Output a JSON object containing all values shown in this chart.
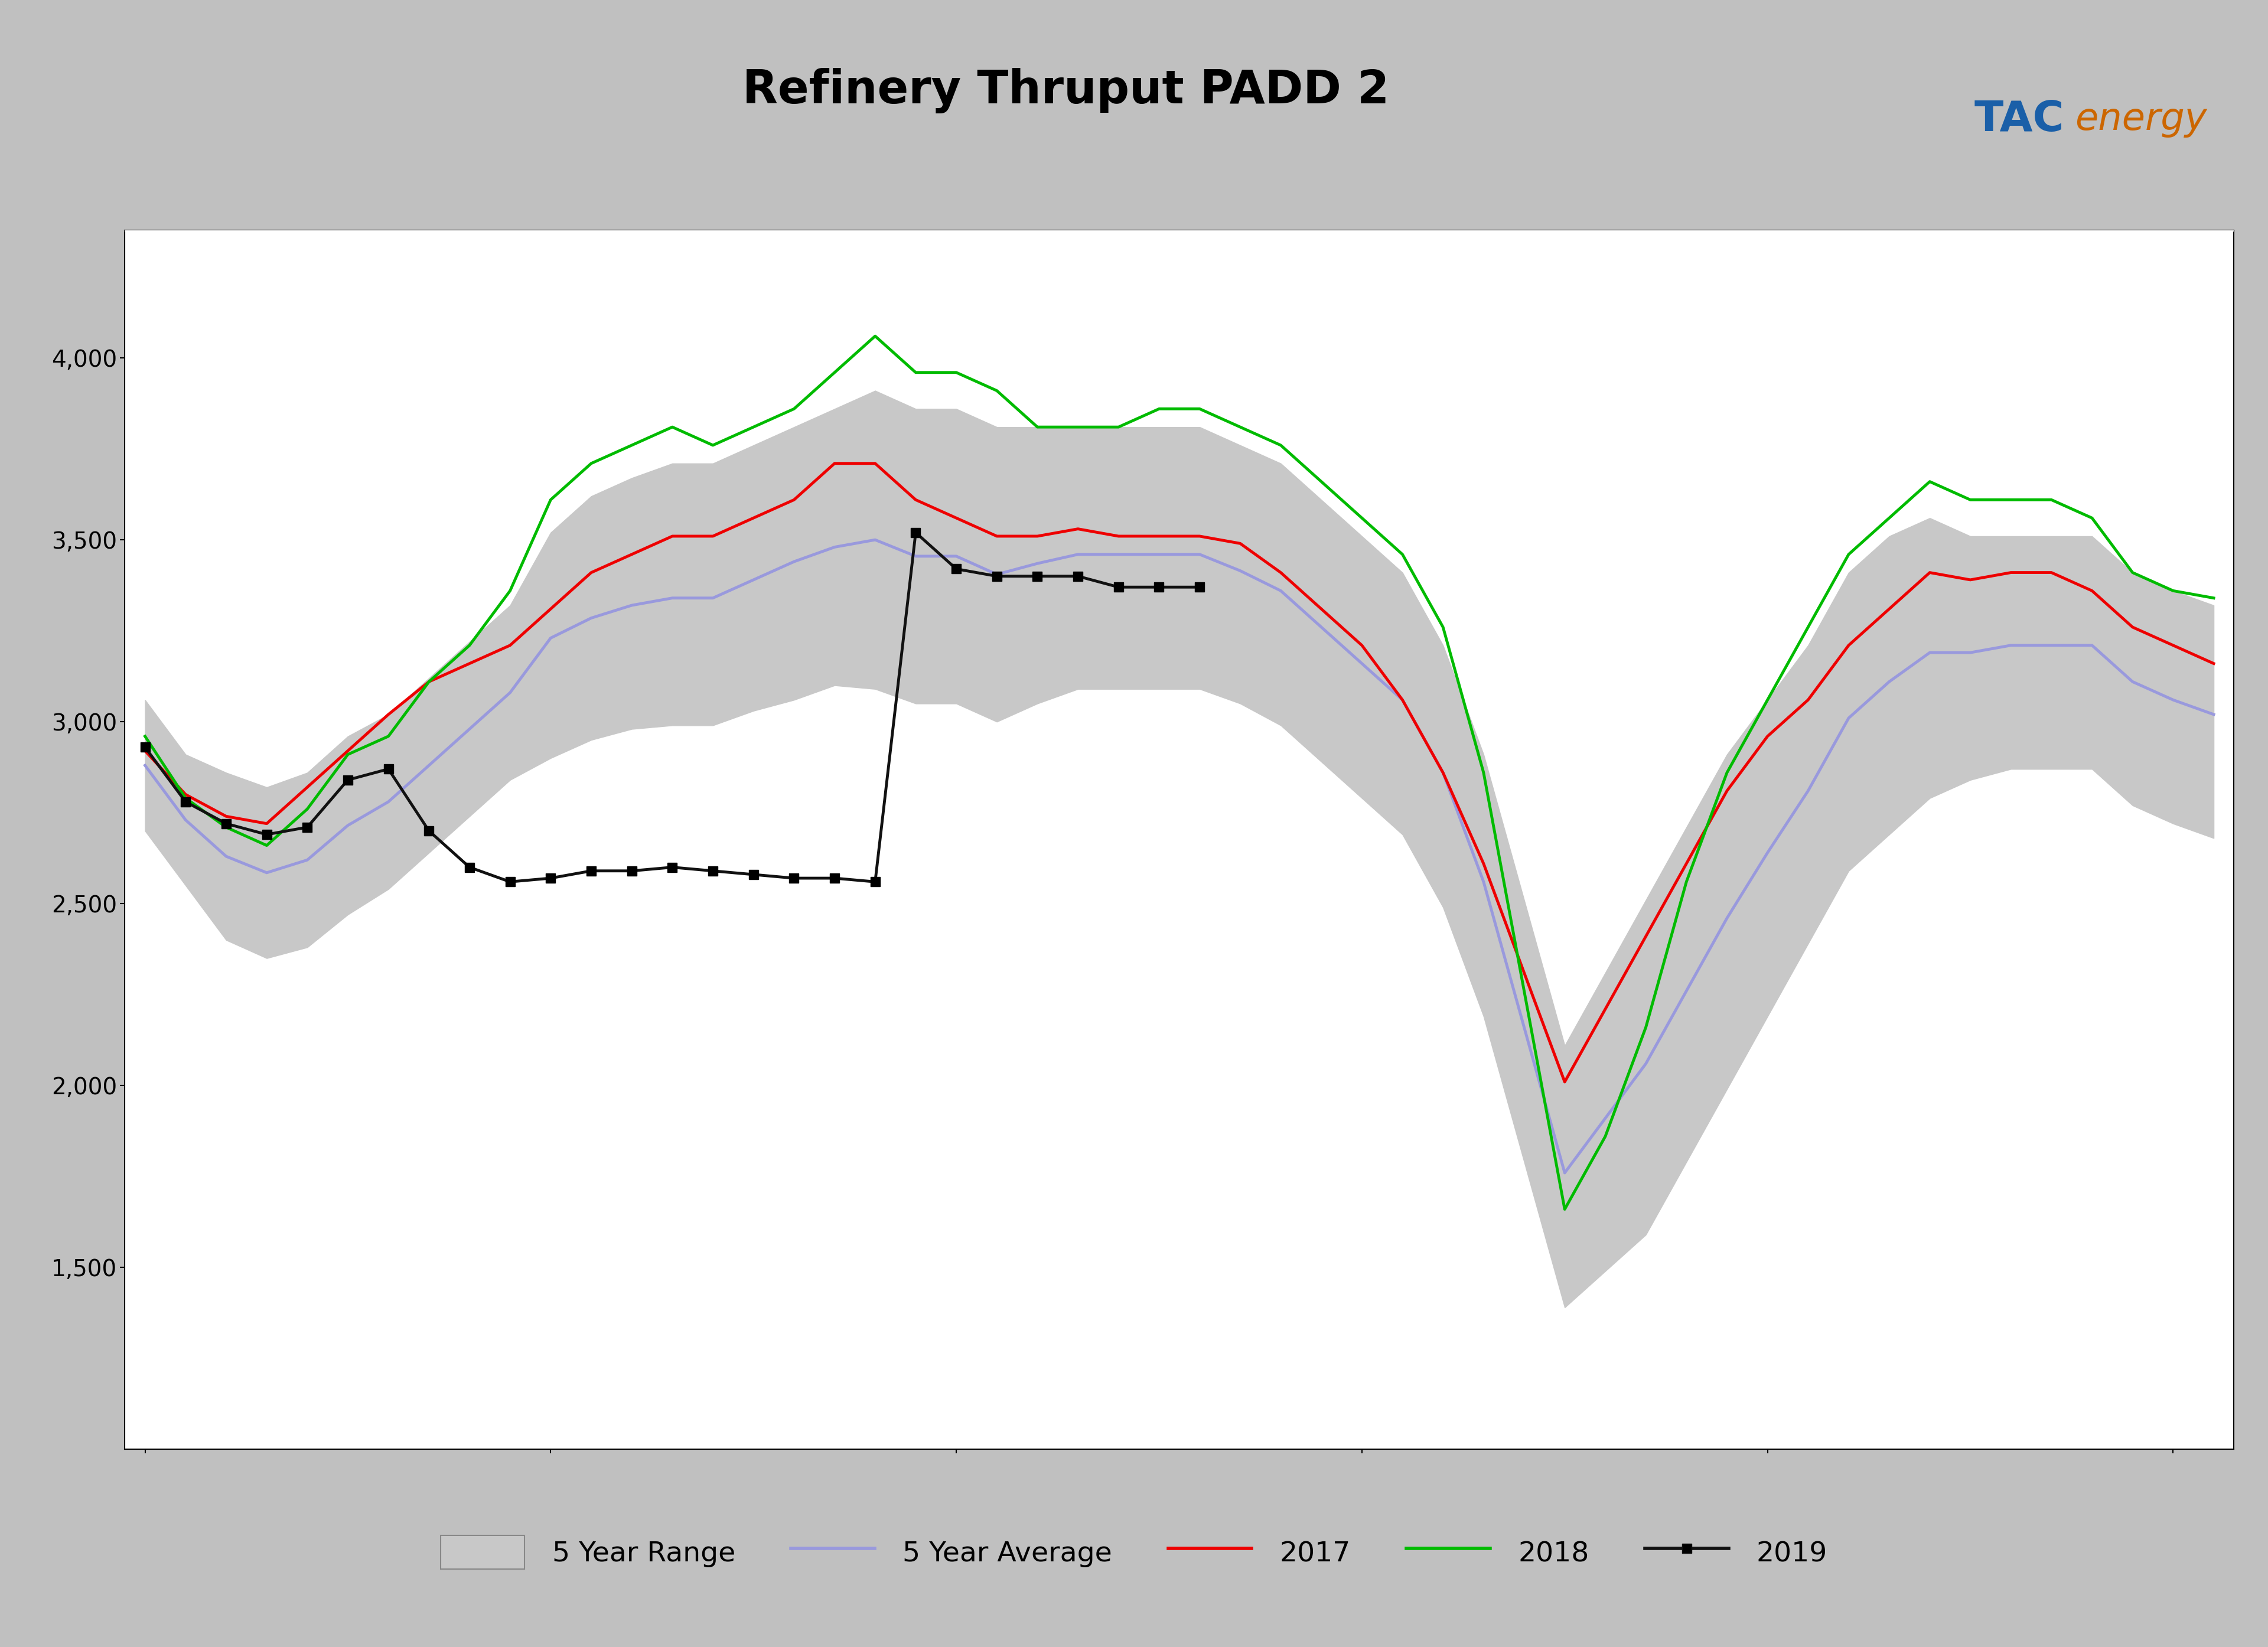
{
  "title": "Refinery Thruput PADD 2",
  "header_bg": "#c0c0c0",
  "blue_bar": "#1a5fa8",
  "plot_bg": "#ffffff",
  "outer_bg": "#000000",
  "grid_color": "#ffffff",
  "ytick_color": "#000000",
  "range_fill": "#c8c8c8",
  "range_fill_alpha": 1.0,
  "avg_color": "#9999dd",
  "color_2017": "#ee0000",
  "color_2018": "#00bb00",
  "color_2019": "#111111",
  "linewidth": 3.5,
  "n_weeks": 52,
  "ylim": [
    1000,
    4350
  ],
  "yticks": [
    1500,
    2000,
    2500,
    3000,
    3500,
    4000
  ],
  "yticklabels": [
    "1,500",
    "2,000",
    "2,500",
    "3,000",
    "3,500",
    "4,000"
  ],
  "range_low": [
    2700,
    2550,
    2400,
    2350,
    2380,
    2470,
    2540,
    2640,
    2740,
    2840,
    2900,
    2950,
    2980,
    2990,
    2990,
    3030,
    3060,
    3100,
    3090,
    3050,
    3050,
    3000,
    3050,
    3090,
    3090,
    3090,
    3090,
    3050,
    2990,
    2890,
    2790,
    2690,
    2490,
    2190,
    1790,
    1390,
    1490,
    1590,
    1790,
    1990,
    2190,
    2390,
    2590,
    2690,
    2790,
    2840,
    2870,
    2870,
    2870,
    2770,
    2720,
    2680
  ],
  "range_high": [
    3060,
    2910,
    2860,
    2820,
    2860,
    2960,
    3020,
    3120,
    3220,
    3320,
    3520,
    3620,
    3670,
    3710,
    3710,
    3760,
    3810,
    3860,
    3910,
    3860,
    3860,
    3810,
    3810,
    3810,
    3810,
    3810,
    3810,
    3760,
    3710,
    3610,
    3510,
    3410,
    3210,
    2910,
    2510,
    2110,
    2310,
    2510,
    2710,
    2910,
    3060,
    3210,
    3410,
    3510,
    3560,
    3510,
    3510,
    3510,
    3510,
    3410,
    3360,
    3320
  ],
  "avg_5yr": [
    2880,
    2730,
    2630,
    2585,
    2620,
    2715,
    2780,
    2880,
    2980,
    3080,
    3230,
    3285,
    3320,
    3340,
    3340,
    3390,
    3440,
    3480,
    3500,
    3455,
    3455,
    3405,
    3435,
    3460,
    3460,
    3460,
    3460,
    3415,
    3360,
    3260,
    3160,
    3060,
    2860,
    2560,
    2160,
    1760,
    1910,
    2060,
    2260,
    2460,
    2640,
    2810,
    3010,
    3110,
    3190,
    3190,
    3210,
    3210,
    3210,
    3110,
    3060,
    3020
  ],
  "y2017": [
    2920,
    2800,
    2740,
    2720,
    2820,
    2920,
    3020,
    3110,
    3160,
    3210,
    3310,
    3410,
    3460,
    3510,
    3510,
    3560,
    3610,
    3710,
    3710,
    3610,
    3560,
    3510,
    3510,
    3530,
    3510,
    3510,
    3510,
    3490,
    3410,
    3310,
    3210,
    3060,
    2860,
    2610,
    2310,
    2010,
    2210,
    2410,
    2610,
    2810,
    2960,
    3060,
    3210,
    3310,
    3410,
    3390,
    3410,
    3410,
    3360,
    3260,
    3210,
    3160
  ],
  "y2018": [
    2960,
    2790,
    2710,
    2660,
    2760,
    2910,
    2960,
    3110,
    3210,
    3360,
    3610,
    3710,
    3760,
    3810,
    3760,
    3810,
    3860,
    3960,
    4060,
    3960,
    3960,
    3910,
    3810,
    3810,
    3810,
    3860,
    3860,
    3810,
    3760,
    3660,
    3560,
    3460,
    3260,
    2860,
    2260,
    1660,
    1860,
    2160,
    2560,
    2860,
    3060,
    3260,
    3460,
    3560,
    3660,
    3610,
    3610,
    3610,
    3560,
    3410,
    3360,
    3340
  ],
  "y2019": [
    2930,
    2780,
    2720,
    2690,
    2710,
    2840,
    2870,
    2700,
    2600,
    2560,
    2570,
    2590,
    2590,
    2600,
    2590,
    2580,
    2570,
    2570,
    2560,
    3520,
    3420,
    3400,
    3400,
    3400,
    3370,
    3370,
    3370,
    null,
    null,
    null,
    null,
    null,
    null,
    null,
    null,
    null,
    null,
    null,
    null,
    null,
    null,
    null,
    null,
    null,
    null,
    null,
    null,
    null,
    null,
    null,
    null,
    null
  ],
  "marker_size": 11
}
